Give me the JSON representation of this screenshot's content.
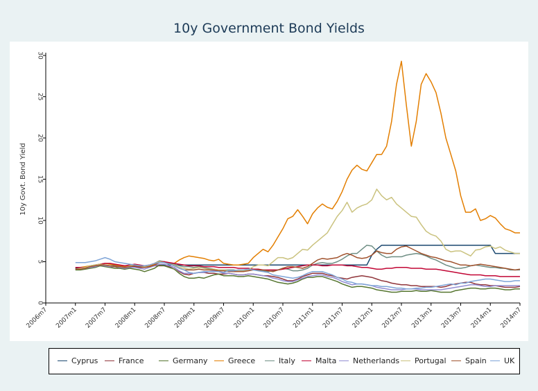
{
  "chart_data": {
    "type": "line",
    "title": "10y Government Bond Yields",
    "ylabel": "10y Govt. Bond Yield",
    "xlabel": "",
    "ylim": [
      0,
      30
    ],
    "xlim": [
      "2006m7",
      "2014m7"
    ],
    "yticks": [
      0,
      5,
      10,
      15,
      20,
      25,
      30
    ],
    "xticks": [
      "2006m7",
      "2007m1",
      "2007m7",
      "2008m1",
      "2008m7",
      "2009m1",
      "2009m7",
      "2010m1",
      "2010m7",
      "2011m1",
      "2011m7",
      "2012m1",
      "2012m7",
      "2013m1",
      "2013m7",
      "2014m1",
      "2014m7"
    ],
    "legend_position": "bottom",
    "grid": false,
    "x_start": "2007m1",
    "series": [
      {
        "name": "Cyprus",
        "color": "#1a476f",
        "values": [
          4.2,
          4.2,
          4.3,
          4.4,
          4.5,
          4.5,
          4.5,
          4.5,
          4.5,
          4.5,
          4.5,
          4.5,
          4.5,
          4.5,
          4.5,
          4.5,
          4.6,
          4.6,
          4.6,
          4.6,
          4.6,
          4.6,
          4.6,
          4.6,
          4.6,
          4.6,
          4.6,
          4.6,
          4.6,
          4.6,
          4.6,
          4.6,
          4.6,
          4.6,
          4.6,
          4.6,
          4.6,
          4.6,
          4.6,
          4.6,
          4.6,
          4.6,
          4.6,
          4.6,
          4.6,
          4.6,
          4.6,
          4.6,
          4.6,
          4.6,
          4.6,
          4.6,
          4.6,
          4.6,
          4.6,
          4.6,
          4.6,
          4.6,
          4.6,
          4.6,
          5.8,
          6.5,
          7,
          7,
          7,
          7,
          7,
          7,
          7,
          7,
          7,
          7,
          7,
          7,
          7,
          7,
          7,
          7,
          7,
          7,
          7,
          7,
          7,
          7,
          7,
          6,
          6,
          6,
          6,
          6,
          6
        ]
      },
      {
        "name": "France",
        "color": "#90353b",
        "values": [
          4.1,
          4.1,
          4.2,
          4.4,
          4.5,
          4.6,
          4.5,
          4.4,
          4.4,
          4.2,
          4.1,
          4.3,
          4.4,
          4.3,
          4.3,
          4.4,
          4.5,
          4.5,
          4.5,
          4.4,
          4.3,
          3.8,
          3.5,
          3.4,
          3.6,
          3.7,
          3.7,
          3.6,
          3.6,
          3.5,
          3.5,
          3.6,
          3.5,
          3.4,
          3.4,
          3.5,
          3.5,
          3.4,
          3.3,
          3.3,
          3.2,
          3.1,
          2.9,
          2.7,
          2.7,
          2.9,
          3.2,
          3.4,
          3.6,
          3.6,
          3.6,
          3.4,
          3.3,
          3.1,
          3,
          2.9,
          3.1,
          3.2,
          3.3,
          3.2,
          3.1,
          2.9,
          2.7,
          2.6,
          2.4,
          2.3,
          2.2,
          2.2,
          2.1,
          2.1,
          2.0,
          2.0,
          2.0,
          2.0,
          1.9,
          2.0,
          2.2,
          2.3,
          2.4,
          2.5,
          2.5,
          2.3,
          2.2,
          2.2,
          2.1,
          2.1,
          2.0,
          1.9,
          1.9,
          1.9,
          2.0
        ]
      },
      {
        "name": "Germany",
        "color": "#55752f",
        "values": [
          4.0,
          4.0,
          4.1,
          4.2,
          4.3,
          4.5,
          4.4,
          4.3,
          4.2,
          4.2,
          4.1,
          4.2,
          4.1,
          4.0,
          3.8,
          4.0,
          4.2,
          4.6,
          4.5,
          4.3,
          4.1,
          3.6,
          3.2,
          3.0,
          3.0,
          3.1,
          3.0,
          3.2,
          3.4,
          3.5,
          3.3,
          3.3,
          3.3,
          3.2,
          3.2,
          3.3,
          3.2,
          3.1,
          3.0,
          2.9,
          2.7,
          2.5,
          2.4,
          2.3,
          2.4,
          2.6,
          2.9,
          3.1,
          3.1,
          3.2,
          3.2,
          3.0,
          2.8,
          2.6,
          2.3,
          2.1,
          1.9,
          2.0,
          2.0,
          1.9,
          1.8,
          1.6,
          1.5,
          1.4,
          1.3,
          1.3,
          1.4,
          1.4,
          1.4,
          1.5,
          1.4,
          1.4,
          1.5,
          1.4,
          1.3,
          1.3,
          1.3,
          1.5,
          1.6,
          1.7,
          1.8,
          1.8,
          1.7,
          1.7,
          1.8,
          1.8,
          1.7,
          1.6,
          1.6,
          1.7,
          1.7
        ]
      },
      {
        "name": "Greece",
        "color": "#e37e00",
        "values": [
          4.3,
          4.3,
          4.4,
          4.5,
          4.6,
          4.7,
          4.8,
          4.7,
          4.6,
          4.5,
          4.4,
          4.5,
          4.6,
          4.5,
          4.4,
          4.5,
          4.7,
          5.0,
          5.0,
          4.8,
          4.8,
          5.2,
          5.5,
          5.7,
          5.6,
          5.5,
          5.4,
          5.2,
          5.1,
          5.3,
          4.8,
          4.7,
          4.6,
          4.6,
          4.7,
          4.8,
          5.5,
          6.0,
          6.5,
          6.2,
          7.0,
          8.0,
          9.0,
          10.2,
          10.5,
          11.3,
          10.5,
          9.6,
          10.8,
          11.5,
          12.0,
          11.6,
          11.4,
          12.3,
          13.5,
          15.0,
          16.1,
          16.7,
          16.2,
          16.0,
          17.0,
          18.0,
          18.0,
          19.0,
          22.0,
          26.5,
          29.3,
          24.0,
          19.0,
          22.0,
          26.5,
          27.8,
          26.8,
          25.5,
          23.0,
          20.0,
          18.0,
          16.0,
          13.0,
          11.0,
          11.0,
          11.4,
          10.0,
          10.2,
          10.6,
          10.3,
          9.6,
          9.0,
          8.8,
          8.5,
          8.5
        ]
      },
      {
        "name": "Italy",
        "color": "#6e8e84",
        "values": [
          4.1,
          4.2,
          4.3,
          4.5,
          4.6,
          4.7,
          4.6,
          4.5,
          4.4,
          4.4,
          4.3,
          4.5,
          4.6,
          4.5,
          4.4,
          4.6,
          4.8,
          5.1,
          5.0,
          4.8,
          4.7,
          4.5,
          4.4,
          4.4,
          4.3,
          4.4,
          4.3,
          4.2,
          4.1,
          4.0,
          4.0,
          4.0,
          4.0,
          3.9,
          3.9,
          4.0,
          4.1,
          4.0,
          3.9,
          3.8,
          3.9,
          4.0,
          4.2,
          4.1,
          3.9,
          3.9,
          4.0,
          4.2,
          4.6,
          4.8,
          4.9,
          4.8,
          4.8,
          5.0,
          5.3,
          5.7,
          6.0,
          6.0,
          6.5,
          7.0,
          6.9,
          6.3,
          5.8,
          5.5,
          5.6,
          5.6,
          5.6,
          5.8,
          5.9,
          6.0,
          5.9,
          5.7,
          5.4,
          5.2,
          4.9,
          4.6,
          4.4,
          4.2,
          4.2,
          4.3,
          4.5,
          4.6,
          4.5,
          4.4,
          4.3,
          4.3,
          4.2,
          4.2,
          4.0,
          4.0,
          4.0
        ]
      },
      {
        "name": "Malta",
        "color": "#c10534",
        "values": [
          4.3,
          4.3,
          4.3,
          4.4,
          4.6,
          4.7,
          4.8,
          4.8,
          4.7,
          4.6,
          4.5,
          4.6,
          4.7,
          4.6,
          4.5,
          4.6,
          4.8,
          5.0,
          5.0,
          4.9,
          4.8,
          4.7,
          4.6,
          4.5,
          4.5,
          4.5,
          4.4,
          4.4,
          4.4,
          4.3,
          4.3,
          4.3,
          4.3,
          4.2,
          4.2,
          4.2,
          4.1,
          4.1,
          4.0,
          4.0,
          4.0,
          4.0,
          4.1,
          4.2,
          4.3,
          4.4,
          4.5,
          4.6,
          4.6,
          4.6,
          4.5,
          4.5,
          4.6,
          4.6,
          4.6,
          4.5,
          4.5,
          4.4,
          4.3,
          4.3,
          4.2,
          4.1,
          4.1,
          4.2,
          4.2,
          4.3,
          4.3,
          4.3,
          4.2,
          4.2,
          4.2,
          4.1,
          4.1,
          4.1,
          4.0,
          3.9,
          3.8,
          3.7,
          3.6,
          3.5,
          3.4,
          3.4,
          3.4,
          3.3,
          3.3,
          3.3,
          3.2,
          3.2,
          3.2,
          3.2,
          3.2
        ]
      },
      {
        "name": "Netherlands",
        "color": "#938dd2",
        "values": [
          4.1,
          4.1,
          4.2,
          4.3,
          4.4,
          4.6,
          4.5,
          4.4,
          4.4,
          4.3,
          4.2,
          4.3,
          4.3,
          4.2,
          4.1,
          4.3,
          4.5,
          4.7,
          4.7,
          4.5,
          4.3,
          3.9,
          3.6,
          3.6,
          3.6,
          3.7,
          3.7,
          3.8,
          3.9,
          3.8,
          3.6,
          3.6,
          3.5,
          3.4,
          3.4,
          3.5,
          3.5,
          3.4,
          3.3,
          3.2,
          3.0,
          2.9,
          2.7,
          2.6,
          2.6,
          2.8,
          3.0,
          3.2,
          3.3,
          3.4,
          3.4,
          3.2,
          3.1,
          2.9,
          2.6,
          2.4,
          2.2,
          2.3,
          2.3,
          2.2,
          2.1,
          1.9,
          1.8,
          1.7,
          1.6,
          1.6,
          1.6,
          1.7,
          1.7,
          1.7,
          1.6,
          1.6,
          1.6,
          1.6,
          1.6,
          1.7,
          1.8,
          1.9,
          2.0,
          2.1,
          2.2,
          2.2,
          2.1,
          2.0,
          2.0,
          2.1,
          2.1,
          2.1,
          2.1,
          2.1,
          2.1
        ]
      },
      {
        "name": "Portugal",
        "color": "#cac27e",
        "values": [
          4.1,
          4.2,
          4.3,
          4.5,
          4.6,
          4.7,
          4.6,
          4.5,
          4.4,
          4.4,
          4.3,
          4.5,
          4.6,
          4.5,
          4.4,
          4.6,
          4.8,
          5.0,
          4.9,
          4.7,
          4.6,
          4.3,
          4.2,
          4.1,
          4.2,
          4.3,
          4.2,
          4.1,
          4.1,
          4.0,
          4.0,
          3.9,
          3.9,
          3.9,
          3.9,
          4.0,
          4.4,
          4.6,
          4.6,
          4.5,
          5.0,
          5.5,
          5.5,
          5.3,
          5.5,
          6.0,
          6.5,
          6.4,
          7.0,
          7.5,
          8.0,
          8.5,
          9.5,
          10.5,
          11.2,
          12.2,
          11.0,
          11.5,
          11.8,
          12.0,
          12.5,
          13.8,
          13.0,
          12.5,
          12.8,
          12.0,
          11.5,
          11.0,
          10.5,
          10.4,
          9.5,
          8.7,
          8.3,
          8.1,
          7.5,
          6.5,
          6.2,
          6.3,
          6.3,
          6.0,
          5.7,
          6.4,
          6.5,
          6.8,
          6.9,
          6.6,
          6.8,
          6.4,
          6.2,
          6.0,
          6.0
        ]
      },
      {
        "name": "Spain",
        "color": "#a0522d",
        "values": [
          4.1,
          4.1,
          4.2,
          4.4,
          4.5,
          4.6,
          4.6,
          4.5,
          4.4,
          4.4,
          4.3,
          4.4,
          4.5,
          4.4,
          4.3,
          4.4,
          4.6,
          4.9,
          4.9,
          4.7,
          4.5,
          4.2,
          4.0,
          4.0,
          4.0,
          4.1,
          4.0,
          4.0,
          4.0,
          3.9,
          3.9,
          3.8,
          3.8,
          3.8,
          3.8,
          3.9,
          4.0,
          4.0,
          4.0,
          3.9,
          3.8,
          4.0,
          4.2,
          4.4,
          4.4,
          4.3,
          4.2,
          4.4,
          4.8,
          5.2,
          5.4,
          5.3,
          5.4,
          5.5,
          5.8,
          6.0,
          5.8,
          5.5,
          5.4,
          5.5,
          5.8,
          6.3,
          6.1,
          6.0,
          6.0,
          6.5,
          6.8,
          6.9,
          6.6,
          6.3,
          6.0,
          5.8,
          5.6,
          5.5,
          5.3,
          5.1,
          5.0,
          4.8,
          4.6,
          4.6,
          4.5,
          4.6,
          4.7,
          4.6,
          4.5,
          4.4,
          4.3,
          4.2,
          4.1,
          4.0,
          4.1
        ]
      },
      {
        "name": "UK",
        "color": "#7ea4d7",
        "values": [
          4.9,
          4.9,
          4.9,
          5.0,
          5.1,
          5.3,
          5.5,
          5.3,
          5.0,
          4.9,
          4.8,
          4.7,
          4.6,
          4.5,
          4.5,
          4.6,
          4.8,
          4.9,
          4.9,
          4.7,
          4.5,
          4.2,
          4.0,
          3.7,
          3.6,
          3.7,
          3.8,
          3.8,
          3.8,
          3.8,
          3.7,
          3.9,
          3.9,
          4.0,
          4.0,
          4.1,
          4.0,
          3.9,
          3.8,
          3.7,
          3.4,
          3.3,
          3.2,
          3.1,
          3.0,
          3.1,
          3.3,
          3.6,
          3.8,
          3.8,
          3.8,
          3.6,
          3.4,
          3.1,
          2.9,
          2.6,
          2.5,
          2.3,
          2.3,
          2.2,
          2.1,
          2.1,
          2.0,
          2.0,
          1.9,
          1.8,
          1.8,
          1.7,
          1.7,
          1.8,
          1.8,
          1.9,
          1.9,
          2.0,
          2.1,
          2.2,
          2.3,
          2.2,
          2.4,
          2.4,
          2.6,
          2.7,
          2.8,
          2.9,
          2.9,
          2.8,
          2.7,
          2.6,
          2.6,
          2.7,
          2.7
        ]
      }
    ]
  }
}
